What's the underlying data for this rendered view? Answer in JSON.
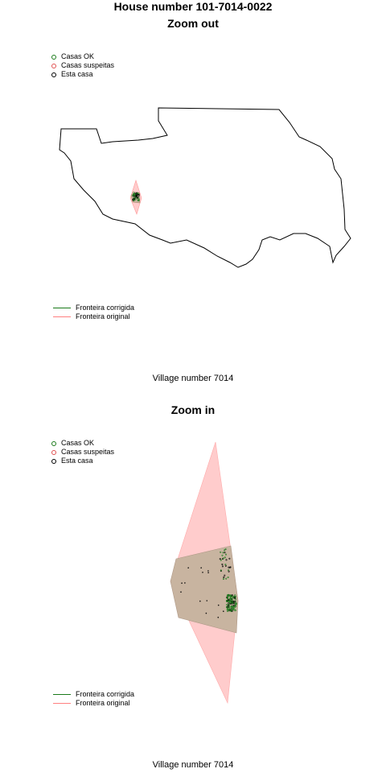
{
  "title": "House number 101-7014-0022",
  "colors": {
    "ok": "#1a7a1a",
    "suspect": "#e05050",
    "this_house": "#000000",
    "corrected": "#1a7a1a",
    "original": "#ff8080",
    "original_fill": "#ffcccc",
    "overlap_fill": "#c8b4a0",
    "outline": "#000000"
  },
  "panels": [
    {
      "title": "Zoom out",
      "footer": "Village number 7014",
      "point_legend": [
        "Casas OK",
        "Casas suspeitas",
        "Esta casa"
      ],
      "line_legend": [
        "Fronteira corrigida",
        "Fronteira original"
      ]
    },
    {
      "title": "Zoom in",
      "footer": "Village number 7014",
      "point_legend": [
        "Casas OK",
        "Casas suspeitas",
        "Esta casa"
      ],
      "line_legend": [
        "Fronteira corrigida",
        "Fronteira original"
      ]
    }
  ],
  "chart_data": [
    {
      "type": "scatter",
      "title": "Zoom out",
      "xlabel": "Village number 7014",
      "legend": [
        "Casas OK",
        "Casas suspeitas",
        "Esta casa",
        "Fronteira corrigida",
        "Fronteira original"
      ],
      "legend_placement": [
        "top-left",
        "bottom-left"
      ],
      "axes": false,
      "grid": false
    },
    {
      "type": "scatter",
      "title": "Zoom in",
      "xlabel": "Village number 7014",
      "legend": [
        "Casas OK",
        "Casas suspeitas",
        "Esta casa",
        "Fronteira corrigida",
        "Fronteira original"
      ],
      "legend_placement": [
        "top-left",
        "bottom-left"
      ],
      "axes": false,
      "grid": false
    }
  ]
}
